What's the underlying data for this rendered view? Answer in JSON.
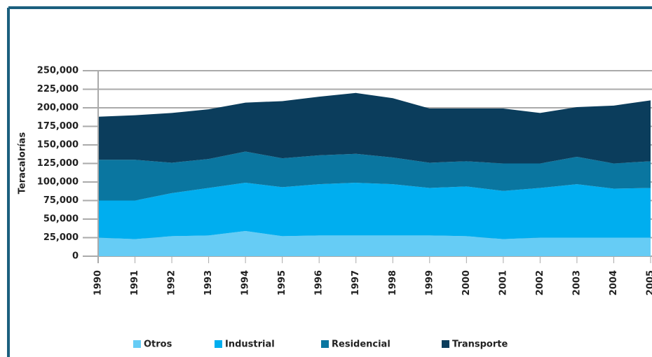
{
  "chart_data": {
    "type": "stacked-area",
    "y_label": "Teracalorías",
    "categories": [
      "1990",
      "1991",
      "1992",
      "1993",
      "1994",
      "1995",
      "1996",
      "1997",
      "1998",
      "1999",
      "2000",
      "2001",
      "2002",
      "2003",
      "2004",
      "2005"
    ],
    "series": [
      {
        "name": "Otros",
        "color": "#66ccf5",
        "values": [
          25000,
          23000,
          27000,
          28000,
          34000,
          27000,
          28000,
          28000,
          28000,
          28000,
          27000,
          23000,
          25000,
          25000,
          25000,
          25000
        ]
      },
      {
        "name": "Industrial",
        "color": "#00aeef",
        "values": [
          50000,
          52000,
          58000,
          64000,
          65000,
          66000,
          69000,
          71000,
          69000,
          64000,
          67000,
          65000,
          67000,
          72000,
          66000,
          67000
        ]
      },
      {
        "name": "Residencial",
        "color": "#0a76a0",
        "values": [
          55000,
          55000,
          41000,
          39000,
          42000,
          39000,
          39000,
          39000,
          36000,
          34000,
          34000,
          37000,
          33000,
          37000,
          34000,
          36000
        ]
      },
      {
        "name": "Transporte",
        "color": "#0b3d5c",
        "values": [
          58000,
          60000,
          67000,
          67000,
          66000,
          77000,
          79000,
          82000,
          80000,
          73000,
          71000,
          74000,
          68000,
          67000,
          78000,
          82000
        ]
      }
    ],
    "ylim": [
      0,
      250000
    ],
    "yticks": [
      0,
      {
        "value": 25000,
        "label": "25,000"
      },
      {
        "value": 50000,
        "label": "50,000"
      },
      {
        "value": 75000,
        "label": "75,000"
      },
      {
        "value": 100000,
        "label": "100,000"
      },
      {
        "value": 125000,
        "label": "125,000"
      },
      {
        "value": 150000,
        "label": "150,000"
      },
      {
        "value": 175000,
        "label": "175,000"
      },
      {
        "value": 200000,
        "label": "200,000"
      },
      {
        "value": 225000,
        "label": "225,000"
      },
      {
        "value": 250000,
        "label": "250,000"
      }
    ],
    "grid": true,
    "legend": "bottom"
  }
}
